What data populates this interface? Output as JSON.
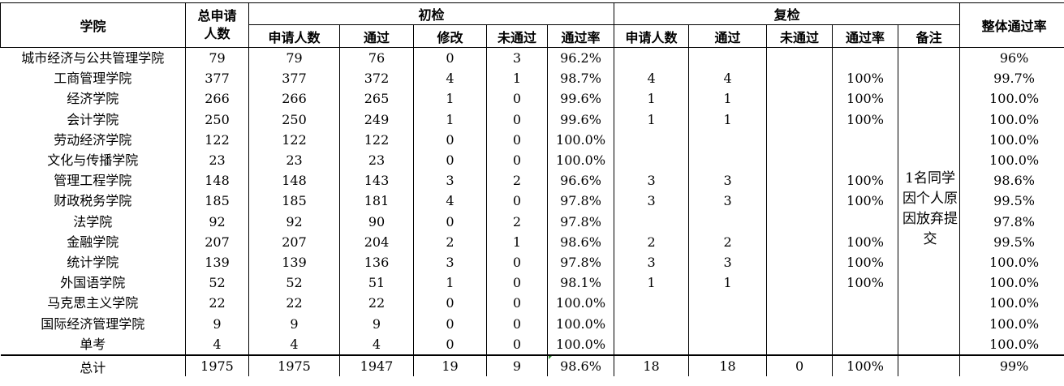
{
  "headers": {
    "college": "学院",
    "total_applicants": "总申请人数",
    "initial": "初检",
    "recheck": "复检",
    "overall_rate": "整体通过率",
    "init_cols": [
      "申请人数",
      "通过",
      "修改",
      "未通过",
      "通过率"
    ],
    "re_cols": [
      "申请人数",
      "通过",
      "未通过",
      "通过率",
      "备注"
    ]
  },
  "rows": [
    {
      "name": "城市经济与公共管理学院",
      "total": "79",
      "i_apply": "79",
      "i_pass": "76",
      "i_mod": "0",
      "i_fail": "3",
      "i_rate": "96.2%",
      "r_apply": "",
      "r_pass": "",
      "r_fail": "",
      "r_rate": "",
      "overall": "96%"
    },
    {
      "name": "工商管理学院",
      "total": "377",
      "i_apply": "377",
      "i_pass": "372",
      "i_mod": "4",
      "i_fail": "1",
      "i_rate": "98.7%",
      "r_apply": "4",
      "r_pass": "4",
      "r_fail": "",
      "r_rate": "100%",
      "overall": "99.7%"
    },
    {
      "name": "经济学院",
      "total": "266",
      "i_apply": "266",
      "i_pass": "265",
      "i_mod": "1",
      "i_fail": "0",
      "i_rate": "99.6%",
      "r_apply": "1",
      "r_pass": "1",
      "r_fail": "",
      "r_rate": "100%",
      "overall": "100.0%"
    },
    {
      "name": "会计学院",
      "total": "250",
      "i_apply": "250",
      "i_pass": "249",
      "i_mod": "1",
      "i_fail": "0",
      "i_rate": "99.6%",
      "r_apply": "1",
      "r_pass": "1",
      "r_fail": "",
      "r_rate": "100%",
      "overall": "100.0%"
    },
    {
      "name": "劳动经济学院",
      "total": "122",
      "i_apply": "122",
      "i_pass": "122",
      "i_mod": "0",
      "i_fail": "0",
      "i_rate": "100.0%",
      "r_apply": "",
      "r_pass": "",
      "r_fail": "",
      "r_rate": "",
      "overall": "100.0%"
    },
    {
      "name": "文化与传播学院",
      "total": "23",
      "i_apply": "23",
      "i_pass": "23",
      "i_mod": "0",
      "i_fail": "0",
      "i_rate": "100.0%",
      "r_apply": "",
      "r_pass": "",
      "r_fail": "",
      "r_rate": "",
      "overall": "100.0%"
    },
    {
      "name": "管理工程学院",
      "total": "148",
      "i_apply": "148",
      "i_pass": "143",
      "i_mod": "3",
      "i_fail": "2",
      "i_rate": "96.6%",
      "r_apply": "3",
      "r_pass": "3",
      "r_fail": "",
      "r_rate": "100%",
      "overall": "98.6%"
    },
    {
      "name": "财政税务学院",
      "total": "185",
      "i_apply": "185",
      "i_pass": "181",
      "i_mod": "4",
      "i_fail": "0",
      "i_rate": "97.8%",
      "r_apply": "3",
      "r_pass": "3",
      "r_fail": "",
      "r_rate": "100%",
      "overall": "99.5%"
    },
    {
      "name": "法学院",
      "total": "92",
      "i_apply": "92",
      "i_pass": "90",
      "i_mod": "0",
      "i_fail": "2",
      "i_rate": "97.8%",
      "r_apply": "",
      "r_pass": "",
      "r_fail": "",
      "r_rate": "",
      "overall": "97.8%"
    },
    {
      "name": "金融学院",
      "total": "207",
      "i_apply": "207",
      "i_pass": "204",
      "i_mod": "2",
      "i_fail": "1",
      "i_rate": "98.6%",
      "r_apply": "2",
      "r_pass": "2",
      "r_fail": "",
      "r_rate": "100%",
      "overall": "99.5%"
    },
    {
      "name": "统计学院",
      "total": "139",
      "i_apply": "139",
      "i_pass": "136",
      "i_mod": "3",
      "i_fail": "0",
      "i_rate": "97.8%",
      "r_apply": "3",
      "r_pass": "3",
      "r_fail": "",
      "r_rate": "100%",
      "overall": "100.0%"
    },
    {
      "name": "外国语学院",
      "total": "52",
      "i_apply": "52",
      "i_pass": "51",
      "i_mod": "1",
      "i_fail": "0",
      "i_rate": "98.1%",
      "r_apply": "1",
      "r_pass": "1",
      "r_fail": "",
      "r_rate": "100%",
      "overall": "100.0%"
    },
    {
      "name": "马克思主义学院",
      "total": "22",
      "i_apply": "22",
      "i_pass": "22",
      "i_mod": "0",
      "i_fail": "0",
      "i_rate": "100.0%",
      "r_apply": "",
      "r_pass": "",
      "r_fail": "",
      "r_rate": "",
      "overall": "100.0%"
    },
    {
      "name": "国际经济管理学院",
      "total": "9",
      "i_apply": "9",
      "i_pass": "9",
      "i_mod": "0",
      "i_fail": "0",
      "i_rate": "100.0%",
      "r_apply": "",
      "r_pass": "",
      "r_fail": "",
      "r_rate": "",
      "overall": "100.0%"
    },
    {
      "name": "单考",
      "total": "4",
      "i_apply": "4",
      "i_pass": "4",
      "i_mod": "0",
      "i_fail": "0",
      "i_rate": "100.0%",
      "r_apply": "",
      "r_pass": "",
      "r_fail": "",
      "r_rate": "",
      "overall": "100.0%"
    }
  ],
  "note": "1名同学因个人原因放弃提交",
  "totals": {
    "name": "总计",
    "total": "1975",
    "i_apply": "1975",
    "i_pass": "1947",
    "i_mod": "19",
    "i_fail": "9",
    "i_rate": "98.6%",
    "r_apply": "18",
    "r_pass": "18",
    "r_fail": "0",
    "r_rate": "100%",
    "overall": "99%"
  }
}
